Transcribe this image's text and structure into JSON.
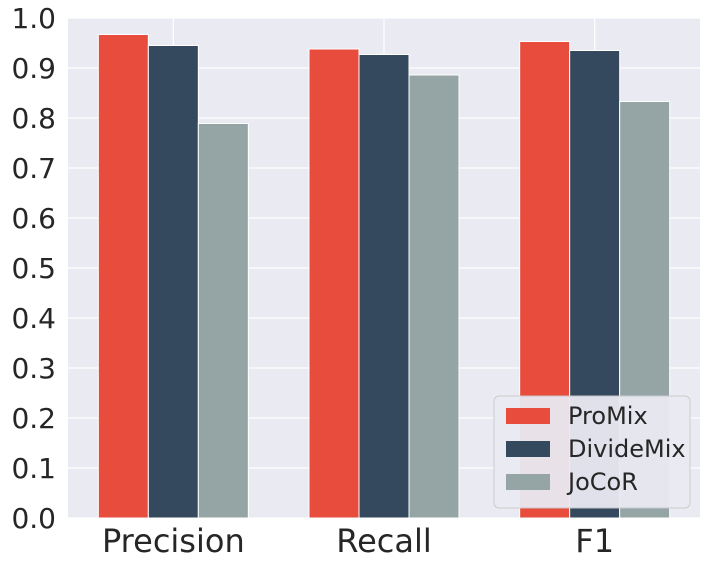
{
  "chart_data": {
    "type": "bar",
    "title": "",
    "xlabel": "",
    "ylabel": "",
    "categories": [
      "Precision",
      "Recall",
      "F1"
    ],
    "series": [
      {
        "name": "ProMix",
        "color": "#e74c3c",
        "values": [
          0.967,
          0.938,
          0.953
        ]
      },
      {
        "name": "DivideMix",
        "color": "#34495e",
        "values": [
          0.945,
          0.927,
          0.935
        ]
      },
      {
        "name": "JoCoR",
        "color": "#95a5a6",
        "values": [
          0.789,
          0.886,
          0.833
        ]
      }
    ],
    "ylim": [
      0.0,
      1.0
    ],
    "yticks": [
      "0.0",
      "0.1",
      "0.2",
      "0.3",
      "0.4",
      "0.5",
      "0.6",
      "0.7",
      "0.8",
      "0.9",
      "1.0"
    ],
    "grid": true,
    "legend_position": "bottom-right"
  }
}
